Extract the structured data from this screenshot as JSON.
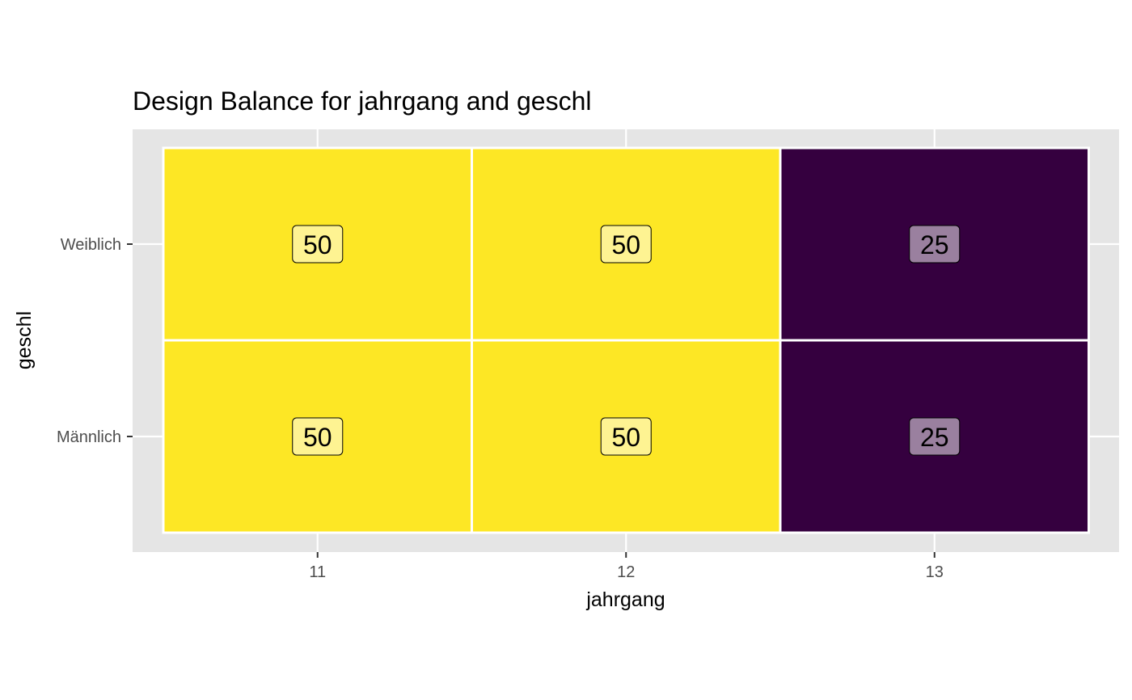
{
  "chart_data": {
    "type": "heatmap",
    "title": "Design Balance for jahrgang and geschl",
    "xlabel": "jahrgang",
    "ylabel": "geschl",
    "x_categories": [
      "11",
      "12",
      "13"
    ],
    "y_categories": [
      "Männlich",
      "Weiblich"
    ],
    "values": [
      [
        50,
        50,
        25
      ],
      [
        50,
        50,
        25
      ]
    ],
    "value_range": [
      25,
      50
    ],
    "colors": {
      "high": "#FDE725",
      "low": "#35003F",
      "panel_background": "#E5E5E5",
      "grid": "#FFFFFF",
      "cell_border": "#FFFFFF",
      "label_border": "#000000"
    },
    "grid": true,
    "legend": "none"
  }
}
